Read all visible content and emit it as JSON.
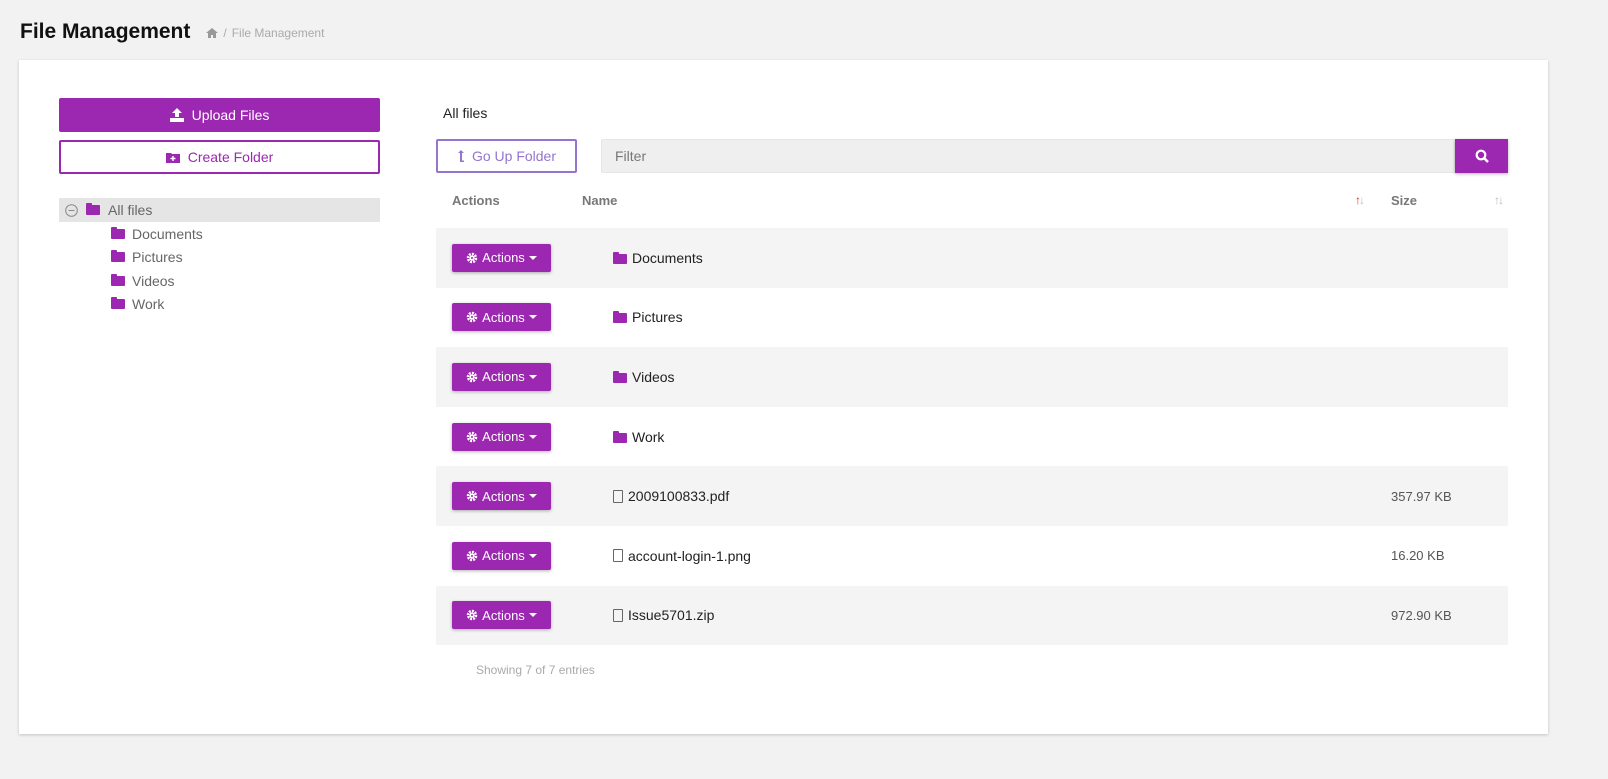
{
  "header": {
    "title": "File Management",
    "breadcrumb_sep": "/",
    "breadcrumb_current": "File Management"
  },
  "sidebar": {
    "upload_label": "Upload Files",
    "create_folder_label": "Create Folder",
    "tree": {
      "root": "All files",
      "children": [
        "Documents",
        "Pictures",
        "Videos",
        "Work"
      ]
    }
  },
  "main": {
    "current_folder": "All files",
    "go_up_label": "Go Up Folder",
    "filter_placeholder": "Filter",
    "columns": {
      "actions": "Actions",
      "name": "Name",
      "size": "Size"
    },
    "sort": {
      "column": "name",
      "direction": "ascending"
    },
    "action_label": "Actions",
    "rows": [
      {
        "name": "Documents",
        "type": "folder",
        "size": ""
      },
      {
        "name": "Pictures",
        "type": "folder",
        "size": ""
      },
      {
        "name": "Videos",
        "type": "folder",
        "size": ""
      },
      {
        "name": "Work",
        "type": "folder",
        "size": ""
      },
      {
        "name": "2009100833.pdf",
        "type": "pdf-file",
        "size": "357.97 KB"
      },
      {
        "name": "account-login-1.png",
        "type": "image-file",
        "size": "16.20 KB"
      },
      {
        "name": "Issue5701.zip",
        "type": "zip-file",
        "size": "972.90 KB"
      }
    ],
    "footer": "Showing 7 of 7 entries"
  },
  "colors": {
    "accent": "#9c27b0",
    "secondary": "#9575cd"
  }
}
